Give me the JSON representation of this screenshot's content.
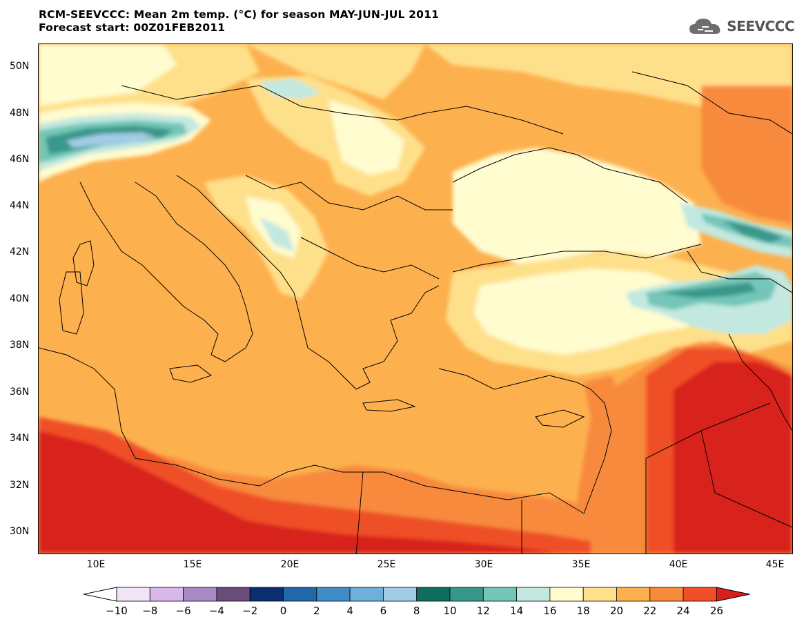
{
  "header": {
    "title_line1": "RCM-SEEVCCC: Mean 2m temp. (°C) for season MAY-JUN-JUL 2011",
    "title_line2": "Forecast start: 00Z01FEB2011"
  },
  "logo": {
    "text": "SEEVCCC",
    "icon": "cloud-icon"
  },
  "map": {
    "lat_labels": [
      "50N",
      "48N",
      "46N",
      "44N",
      "42N",
      "40N",
      "38N",
      "36N",
      "34N",
      "32N",
      "30N"
    ],
    "lon_labels": [
      "10E",
      "15E",
      "20E",
      "25E",
      "30E",
      "35E",
      "40E",
      "45E"
    ]
  },
  "colorbar": {
    "labels": [
      "−10",
      "−8",
      "−6",
      "−4",
      "−2",
      "0",
      "2",
      "4",
      "6",
      "8",
      "10",
      "12",
      "14",
      "16",
      "18",
      "20",
      "22",
      "24",
      "26"
    ],
    "colors": [
      "#f0e4f6",
      "#d8b8e8",
      "#a78ac6",
      "#6a4c7a",
      "#0a2e6e",
      "#2068a8",
      "#3f8cc6",
      "#6fb0da",
      "#a2cbe6",
      "#0e6e5e",
      "#37988a",
      "#73c6b8",
      "#c2e8e0",
      "#fffcd0",
      "#fee08a",
      "#fdb04e",
      "#f88a3c",
      "#ef5028"
    ],
    "low_color": "#ffffff",
    "high_color": "#d8201e"
  }
}
